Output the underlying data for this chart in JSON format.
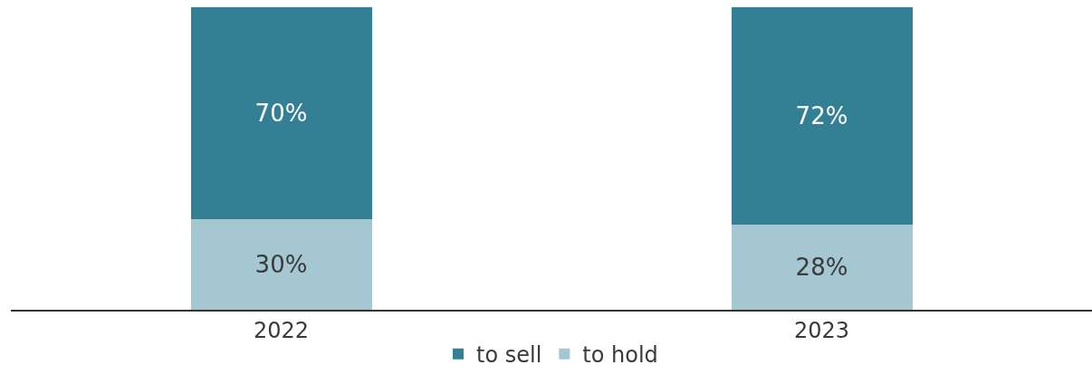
{
  "chart_data": {
    "type": "bar",
    "stacked": true,
    "categories": [
      "2022",
      "2023"
    ],
    "series": [
      {
        "name": "to hold",
        "color": "#a5c7d1",
        "values": [
          30,
          28
        ],
        "value_labels": [
          "30%",
          "28%"
        ]
      },
      {
        "name": "to sell",
        "color": "#337f94",
        "values": [
          70,
          72
        ],
        "value_labels": [
          "70%",
          "72%"
        ]
      }
    ],
    "ylim": [
      0,
      100
    ],
    "legend": "bottom",
    "tick_labels": "x"
  }
}
